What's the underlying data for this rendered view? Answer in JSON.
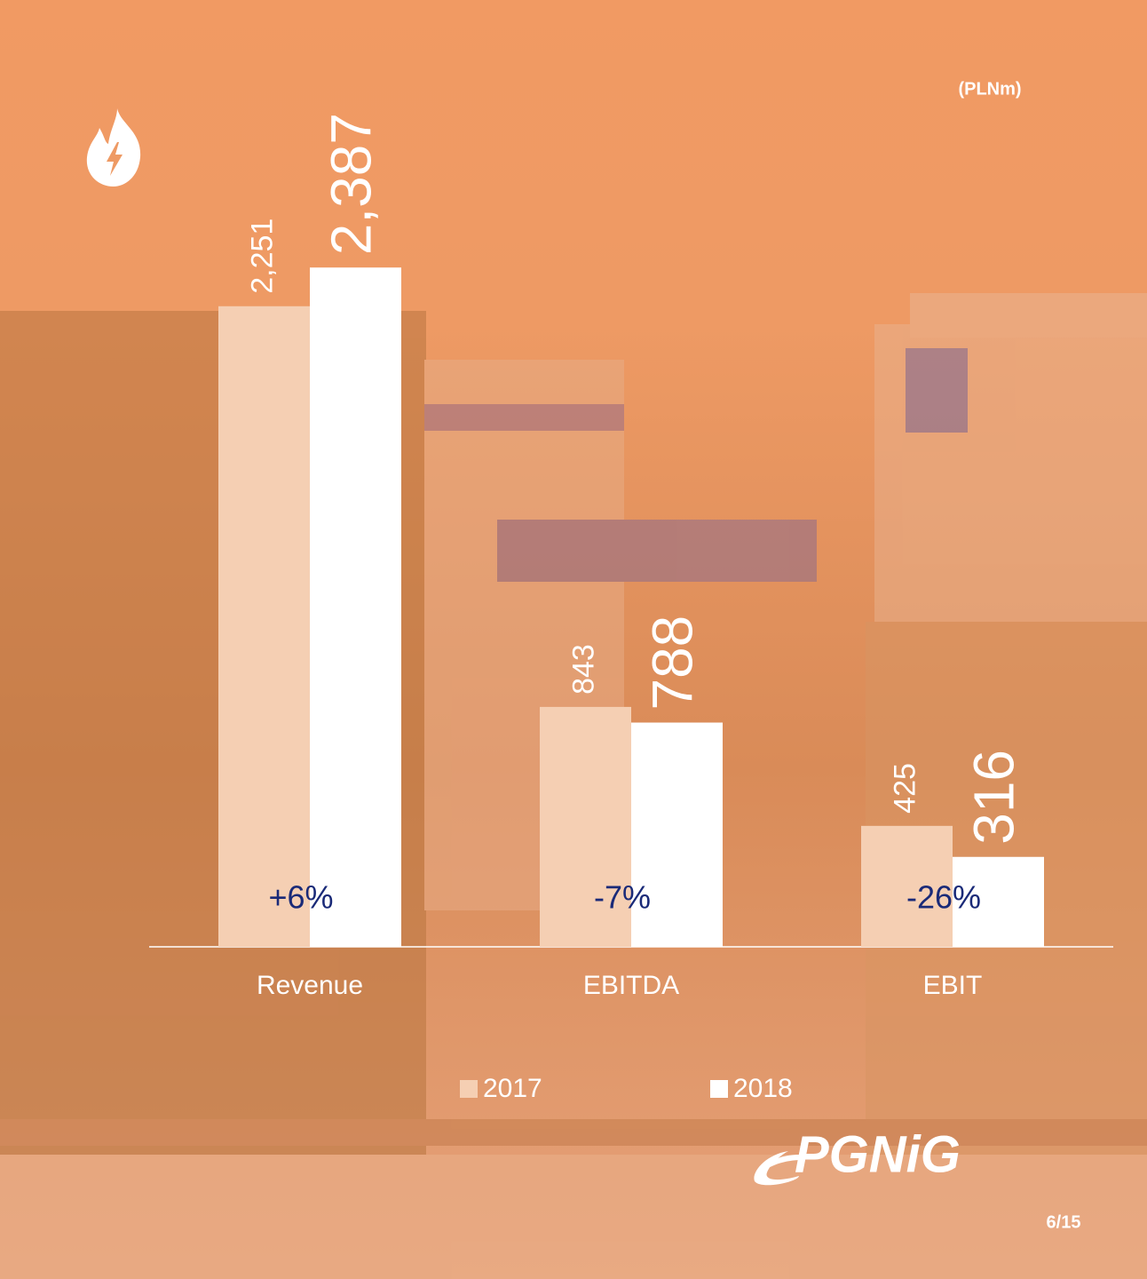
{
  "chart_data": {
    "type": "bar",
    "unit": "(PLNm)",
    "categories": [
      "Revenue",
      "EBITDA",
      "EBIT"
    ],
    "series": [
      {
        "name": "2017",
        "color": "#f5cfb3",
        "values": [
          2251,
          843,
          425
        ],
        "value_labels": [
          "2,251",
          "843",
          "425"
        ]
      },
      {
        "name": "2018",
        "color": "#ffffff",
        "values": [
          2387,
          788,
          316
        ],
        "value_labels": [
          "2,387",
          "788",
          "316"
        ]
      }
    ],
    "annotations": [
      "+6%",
      "-7%",
      "-26%"
    ],
    "ylim": [
      0,
      2500
    ],
    "logo": "PGNiG",
    "page": "6/15"
  }
}
